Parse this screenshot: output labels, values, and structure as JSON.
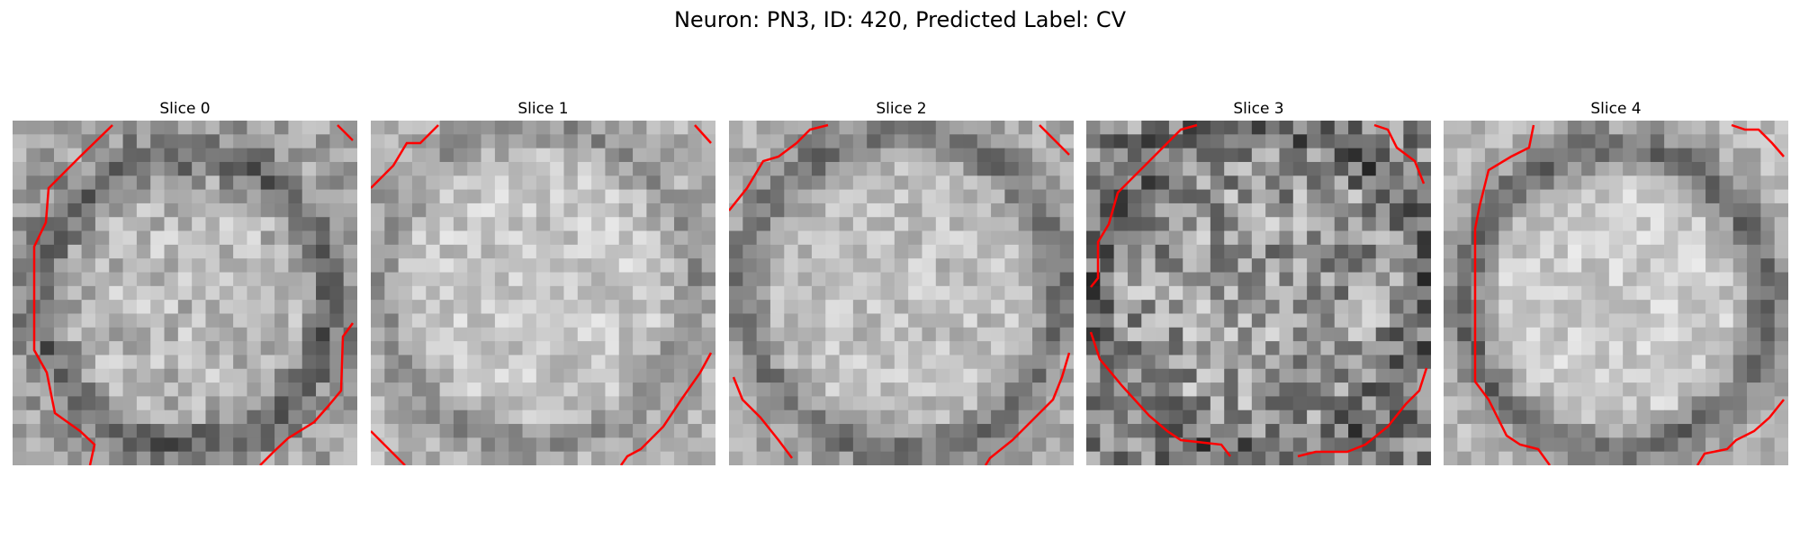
{
  "figure": {
    "suptitle": "Neuron: PN3, ID: 420, Predicted Label: CV",
    "contour_color": "#ff0000",
    "colormap": "gray"
  },
  "slices": [
    {
      "title": "Slice 0"
    },
    {
      "title": "Slice 1"
    },
    {
      "title": "Slice 2"
    },
    {
      "title": "Slice 3"
    },
    {
      "title": "Slice 4"
    }
  ]
}
